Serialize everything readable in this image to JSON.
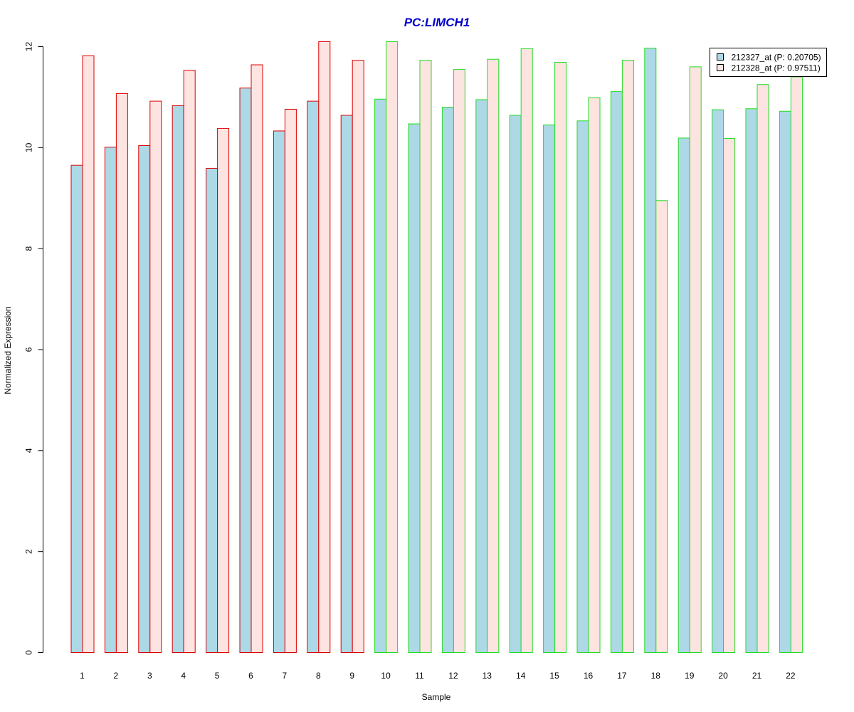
{
  "chart_data": {
    "type": "bar",
    "title": "PC:LIMCH1",
    "title_color": "#0000cc",
    "xlabel": "Sample",
    "ylabel": "Normalized Expression",
    "ylim": [
      0,
      12
    ],
    "yticks": [
      "0",
      "2",
      "4",
      "6",
      "8",
      "10",
      "12"
    ],
    "categories": [
      "1",
      "2",
      "3",
      "4",
      "5",
      "6",
      "7",
      "8",
      "9",
      "10",
      "11",
      "12",
      "13",
      "14",
      "15",
      "16",
      "17",
      "18",
      "19",
      "20",
      "21",
      "22"
    ],
    "series": [
      {
        "name": "212327_at (P: 0.20705)",
        "fill": "#add8e6",
        "values": [
          9.65,
          10.01,
          10.04,
          10.83,
          9.59,
          11.18,
          10.33,
          10.92,
          10.64,
          10.96,
          10.47,
          10.8,
          10.95,
          10.64,
          10.45,
          10.53,
          11.11,
          11.97,
          10.19,
          10.75,
          10.77,
          10.72
        ]
      },
      {
        "name": "212328_at (P: 0.97511)",
        "fill": "#fde4e1",
        "values": [
          11.82,
          11.07,
          10.92,
          11.53,
          10.38,
          11.64,
          10.76,
          12.1,
          11.73,
          12.1,
          11.73,
          11.55,
          11.75,
          11.96,
          11.69,
          10.99,
          11.73,
          8.95,
          11.6,
          10.18,
          11.25,
          11.4
        ]
      }
    ],
    "group_border_colors": [
      "#dd0000",
      "#dd0000",
      "#dd0000",
      "#dd0000",
      "#dd0000",
      "#dd0000",
      "#dd0000",
      "#dd0000",
      "#dd0000",
      "#22dd22",
      "#22dd22",
      "#22dd22",
      "#22dd22",
      "#22dd22",
      "#22dd22",
      "#22dd22",
      "#22dd22",
      "#22dd22",
      "#22dd22",
      "#22dd22",
      "#22dd22",
      "#22dd22"
    ],
    "legend_position": "top-right",
    "grid": false
  }
}
